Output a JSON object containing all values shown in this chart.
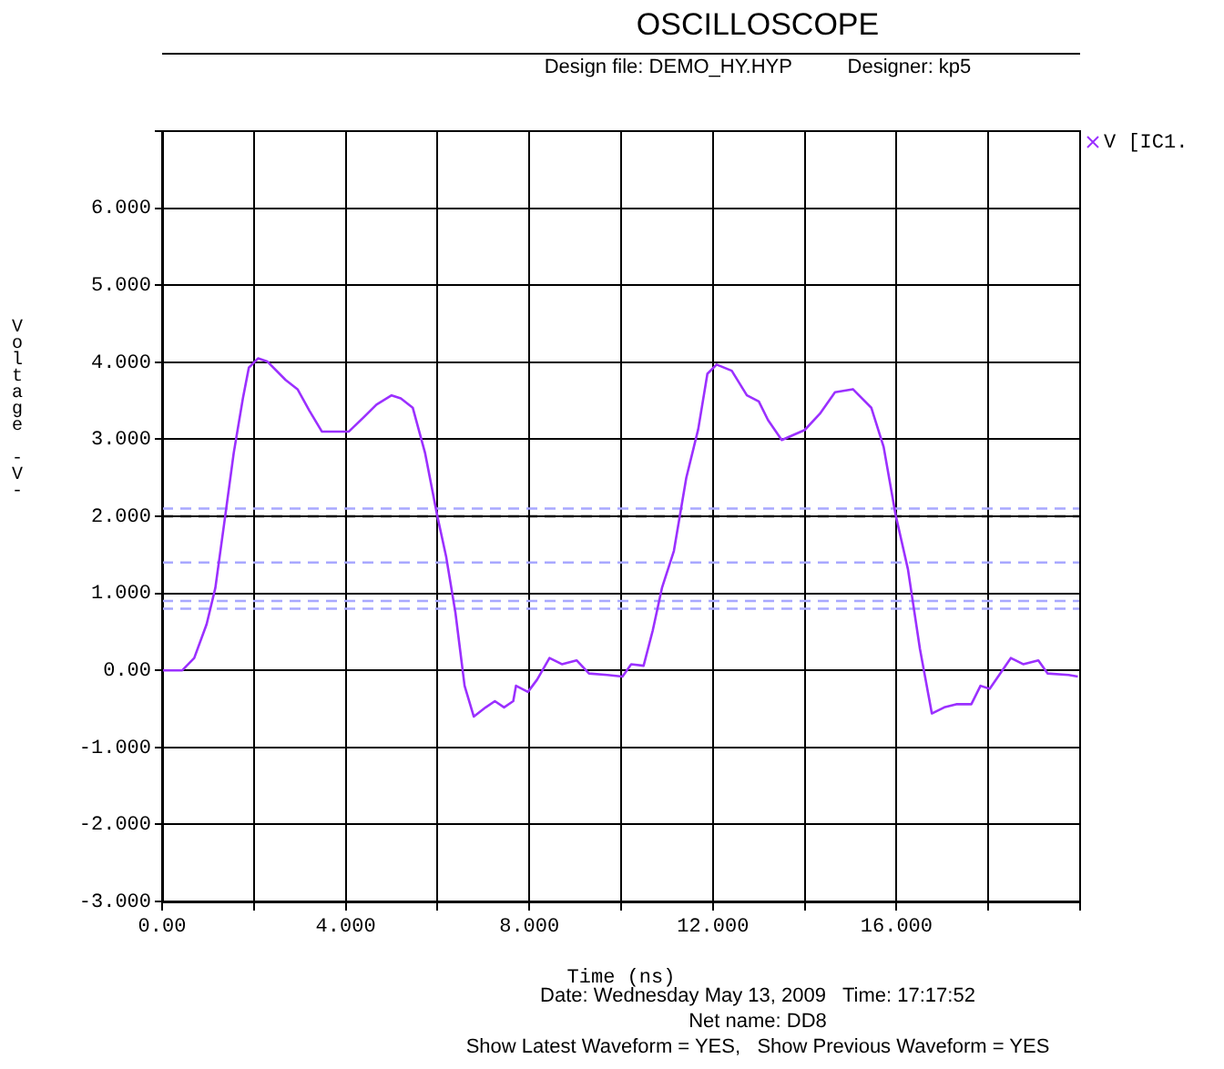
{
  "chart_data": {
    "type": "line",
    "title": "OSCILLOSCOPE",
    "subtitle": "Design file: DEMO_HY.HYP          Designer: kp5",
    "xlabel": "Time (ns)",
    "ylabel": "Voltage -V-",
    "annotations": [
      "Date: Wednesday May 13, 2009   Time: 17:17:52",
      "Net name: DD8",
      "Show Latest Waveform = YES,   Show Previous Waveform = YES"
    ],
    "series": [
      {
        "name": "V [IC1.",
        "color": "#9b30ff",
        "x": [
          0,
          0.44,
          0.7,
          0.97,
          1.16,
          1.36,
          1.56,
          1.76,
          1.89,
          2.09,
          2.29,
          2.69,
          2.95,
          3.21,
          3.48,
          4.07,
          4.4,
          4.67,
          5.0,
          5.2,
          5.46,
          5.73,
          5.99,
          6.19,
          6.39,
          6.59,
          6.79,
          7.05,
          7.25,
          7.45,
          7.65,
          7.71,
          7.97,
          8.17,
          8.44,
          8.71,
          9.03,
          9.3,
          9.7,
          10.03,
          10.22,
          10.49,
          10.69,
          10.89,
          11.15,
          11.42,
          11.68,
          11.88,
          12.08,
          12.41,
          12.74,
          13.0,
          13.2,
          13.5,
          14.0,
          14.33,
          14.66,
          15.05,
          15.45,
          15.72,
          15.98,
          16.25,
          16.51,
          16.77,
          17.04,
          17.3,
          17.63,
          17.83,
          18.03,
          18.49,
          18.76,
          19.09,
          19.29,
          19.75,
          19.95
        ],
        "values": [
          0,
          0,
          0.16,
          0.6,
          1.07,
          1.94,
          2.82,
          3.53,
          3.93,
          4.05,
          4.01,
          3.77,
          3.65,
          3.37,
          3.1,
          3.1,
          3.29,
          3.45,
          3.57,
          3.53,
          3.41,
          2.82,
          2.02,
          1.47,
          0.75,
          -0.2,
          -0.6,
          -0.48,
          -0.4,
          -0.48,
          -0.4,
          -0.2,
          -0.28,
          -0.12,
          0.16,
          0.08,
          0.13,
          -0.04,
          -0.06,
          -0.08,
          0.08,
          0.06,
          0.52,
          1.07,
          1.55,
          2.5,
          3.13,
          3.85,
          3.97,
          3.89,
          3.57,
          3.49,
          3.25,
          2.99,
          3.12,
          3.33,
          3.61,
          3.65,
          3.41,
          2.9,
          2.02,
          1.31,
          0.28,
          -0.56,
          -0.48,
          -0.44,
          -0.44,
          -0.2,
          -0.24,
          0.16,
          0.08,
          0.13,
          -0.04,
          -0.06,
          -0.08
        ]
      }
    ],
    "xlim": [
      0,
      20
    ],
    "xticks": [
      {
        "value": 0,
        "label": "0.00"
      },
      {
        "value": 2,
        "label": null
      },
      {
        "value": 4,
        "label": "4.000"
      },
      {
        "value": 6,
        "label": null
      },
      {
        "value": 8,
        "label": "8.000"
      },
      {
        "value": 10,
        "label": null
      },
      {
        "value": 12,
        "label": "12.000"
      },
      {
        "value": 14,
        "label": null
      },
      {
        "value": 16,
        "label": "16.000"
      },
      {
        "value": 18,
        "label": null
      },
      {
        "value": 20,
        "label": null
      }
    ],
    "ylim": [
      -3,
      7
    ],
    "yticks": [
      {
        "value": -3,
        "label": "-3.000"
      },
      {
        "value": -2,
        "label": "-2.000"
      },
      {
        "value": -1,
        "label": "-1.000"
      },
      {
        "value": 0,
        "label": "0.00"
      },
      {
        "value": 1,
        "label": "1.000"
      },
      {
        "value": 2,
        "label": "2.000"
      },
      {
        "value": 3,
        "label": "3.000"
      },
      {
        "value": 4,
        "label": "4.000"
      },
      {
        "value": 5,
        "label": "5.000"
      },
      {
        "value": 6,
        "label": "6.000"
      },
      {
        "value": 7,
        "label": null
      }
    ],
    "ref_lines": [
      {
        "axis": "y",
        "value": 2.1,
        "color": "#a8a8ff",
        "line_style": "dashed"
      },
      {
        "axis": "y",
        "value": 2.0,
        "color": "#000000",
        "line_style": "dashed"
      },
      {
        "axis": "y",
        "value": 1.4,
        "color": "#a8a8ff",
        "line_style": "dashed"
      },
      {
        "axis": "y",
        "value": 0.9,
        "color": "#a8a8ff",
        "line_style": "dashed"
      },
      {
        "axis": "y",
        "value": 0.8,
        "color": "#a8a8ff",
        "line_style": "dashed"
      }
    ],
    "grid": true,
    "legend": "top right",
    "marker": "none",
    "line_style": "solid"
  }
}
